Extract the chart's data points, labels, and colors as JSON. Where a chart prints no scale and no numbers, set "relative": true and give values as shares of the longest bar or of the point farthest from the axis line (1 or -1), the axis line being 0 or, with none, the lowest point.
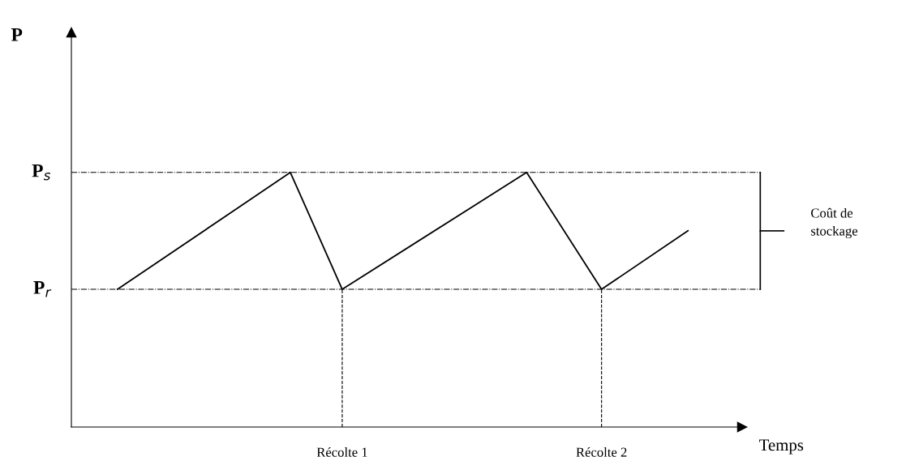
{
  "chart_data": {
    "type": "line",
    "relative": true,
    "xlabel": "Temps",
    "categories": [
      null,
      null,
      null,
      null,
      null,
      null,
      null,
      null,
      null,
      null,
      null,
      null,
      null,
      null,
      null,
      null,
      null,
      null,
      null,
      null,
      null,
      null,
      null,
      null,
      null,
      null,
      null,
      null,
      null,
      null,
      null,
      null,
      null,
      null,
      null,
      null,
      null,
      null,
      null,
      "Récolte 1",
      null,
      null,
      null,
      null,
      null,
      null,
      null,
      null,
      null,
      null,
      null,
      null,
      null,
      null,
      null,
      null,
      null,
      null,
      null,
      null,
      null,
      null,
      null,
      null,
      null,
      null,
      null,
      null,
      null,
      null,
      null,
      null,
      null,
      null,
      null,
      null,
      null,
      null,
      null,
      null,
      null,
      null,
      null,
      null,
      "Récolte 2",
      null,
      null,
      null,
      null,
      null,
      null,
      null,
      null,
      null,
      null,
      null,
      null,
      null,
      null,
      null
    ],
    "series": [
      {
        "color": "#000000",
        "values": [
          0.541,
          null,
          null,
          null,
          null,
          null,
          null,
          null,
          null,
          null,
          null,
          null,
          null,
          null,
          null,
          null,
          null,
          null,
          null,
          null,
          null,
          null,
          null,
          null,
          null,
          null,
          null,
          null,
          null,
          null,
          1,
          null,
          null,
          null,
          null,
          null,
          null,
          null,
          null,
          0.541,
          null,
          null,
          null,
          null,
          null,
          null,
          null,
          null,
          null,
          null,
          null,
          null,
          null,
          null,
          null,
          null,
          null,
          null,
          null,
          null,
          null,
          null,
          null,
          null,
          null,
          null,
          null,
          null,
          null,
          null,
          null,
          1,
          null,
          null,
          null,
          null,
          null,
          null,
          null,
          null,
          null,
          null,
          null,
          null,
          0.541,
          null,
          null,
          null,
          null,
          null,
          null,
          null,
          null,
          null,
          null,
          null,
          null,
          null,
          null,
          0.771
        ]
      }
    ],
    "ref_lines": [
      {
        "axis": "y",
        "value": 1,
        "label": "P$_{s}$",
        "line_style": "dashdot",
        "color": "#000000"
      },
      {
        "axis": "y",
        "value": 0.541,
        "label": "P$_{r}$",
        "line_style": "dashdot",
        "color": "#000000"
      }
    ],
    "annotations": [
      "P",
      "Coût de\nstockage"
    ],
    "marker": "none",
    "line_style": "solid",
    "grid": false,
    "legend": false
  }
}
